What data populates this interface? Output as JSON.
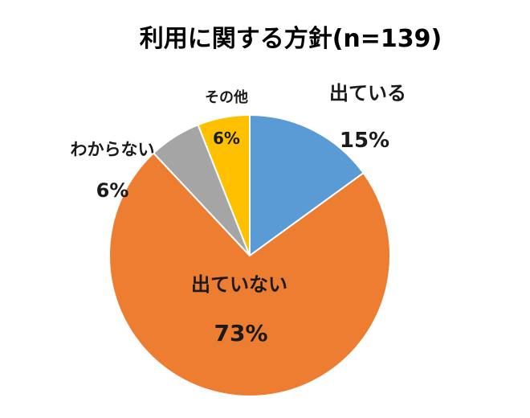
{
  "chart_data": {
    "type": "pie",
    "title": "利用に関する方針(n=139)",
    "categories": [
      "出ている",
      "出ていない",
      "わからない",
      "その他"
    ],
    "values": [
      15,
      73,
      6,
      6
    ],
    "value_labels": [
      "15%",
      "73%",
      "6%",
      "6%"
    ],
    "colors": [
      "#5B9BD5",
      "#ED7D31",
      "#A5A5A5",
      "#FFC000"
    ],
    "start_angle_deg": 0,
    "direction": "clockwise",
    "legend": "none"
  }
}
